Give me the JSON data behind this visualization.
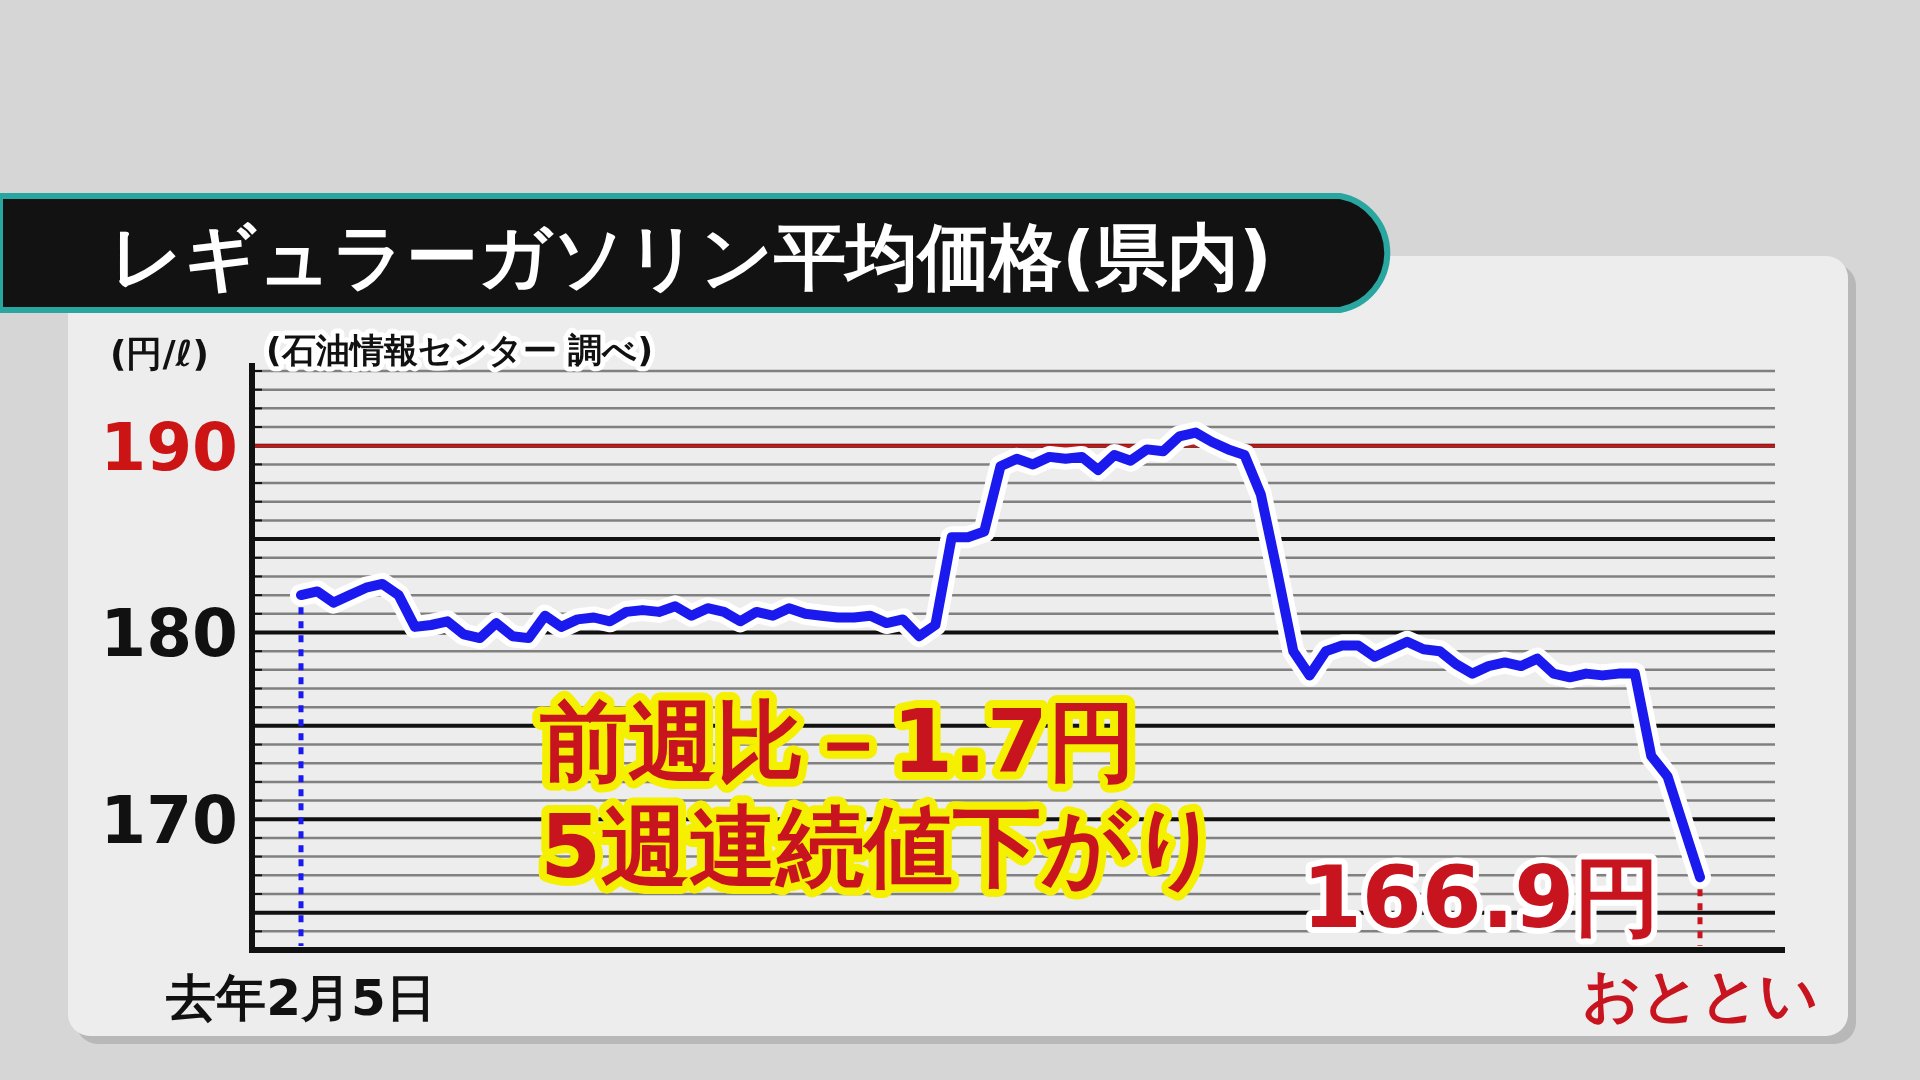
{
  "chart_data": {
    "type": "line",
    "title": "レギュラーガソリン平均価格(県内)",
    "ylabel": "(円/ℓ)",
    "categories": [
      "去年2月5日",
      null,
      null,
      null,
      null,
      null,
      null,
      null,
      null,
      null,
      null,
      null,
      null,
      null,
      null,
      null,
      null,
      null,
      null,
      null,
      null,
      null,
      null,
      null,
      null,
      null,
      null,
      null,
      null,
      null,
      null,
      null,
      null,
      null,
      null,
      null,
      null,
      null,
      null,
      null,
      null,
      null,
      null,
      null,
      null,
      null,
      null,
      null,
      null,
      null,
      null,
      null,
      null,
      null,
      null,
      null,
      null,
      null,
      null,
      null,
      null,
      null,
      null,
      null,
      null,
      null,
      null,
      null,
      null,
      null,
      null,
      null,
      null,
      null,
      null,
      null,
      null,
      null,
      null,
      null,
      null,
      null,
      null,
      null,
      null,
      null,
      "おととい"
    ],
    "series": [
      {
        "color": "#1a1aee",
        "values": [
          182.0,
          182.2,
          181.6,
          182.0,
          182.4,
          182.6,
          182.0,
          180.3,
          180.4,
          180.6,
          179.9,
          179.7,
          180.5,
          179.8,
          179.7,
          180.9,
          180.3,
          180.7,
          180.8,
          180.6,
          181.1,
          181.2,
          181.1,
          181.4,
          180.9,
          181.3,
          181.1,
          180.6,
          181.1,
          180.9,
          181.3,
          181.0,
          180.9,
          180.8,
          180.8,
          180.9,
          180.5,
          180.7,
          179.8,
          180.4,
          185.1,
          185.1,
          185.4,
          188.9,
          189.3,
          189.0,
          189.4,
          189.3,
          189.4,
          188.7,
          189.5,
          189.2,
          189.8,
          189.7,
          190.5,
          190.7,
          190.2,
          189.8,
          189.5,
          187.4,
          183.3,
          179.0,
          177.7,
          179.0,
          179.3,
          179.3,
          178.7,
          179.1,
          179.5,
          179.1,
          179.0,
          178.3,
          177.8,
          178.2,
          178.4,
          178.2,
          178.6,
          177.8,
          177.6,
          177.8,
          177.7,
          177.8,
          177.8,
          173.4,
          172.3,
          169.6,
          166.9
        ]
      }
    ],
    "ylim": [
      163,
      194
    ],
    "yticks": [
      {
        "value": 164,
        "label": null
      },
      {
        "value": 165,
        "label": null
      },
      {
        "value": 166,
        "label": null
      },
      {
        "value": 167,
        "label": null
      },
      {
        "value": 168,
        "label": null
      },
      {
        "value": 169,
        "label": null
      },
      170,
      {
        "value": 171,
        "label": null
      },
      {
        "value": 172,
        "label": null
      },
      {
        "value": 173,
        "label": null
      },
      {
        "value": 174,
        "label": null
      },
      {
        "value": 175,
        "label": null
      },
      {
        "value": 176,
        "label": null
      },
      {
        "value": 177,
        "label": null
      },
      {
        "value": 178,
        "label": null
      },
      {
        "value": 179,
        "label": null
      },
      180,
      {
        "value": 181,
        "label": null
      },
      {
        "value": 182,
        "label": null
      },
      {
        "value": 183,
        "label": null
      },
      {
        "value": 184,
        "label": null
      },
      {
        "value": 185,
        "label": null
      },
      {
        "value": 186,
        "label": null
      },
      {
        "value": 187,
        "label": null
      },
      {
        "value": 188,
        "label": null
      },
      {
        "value": 189,
        "label": null
      },
      190,
      {
        "value": 191,
        "label": null
      },
      {
        "value": 192,
        "label": null
      },
      {
        "value": 193,
        "label": null
      },
      {
        "value": 194,
        "label": null
      }
    ],
    "grid": "y",
    "marker": "none",
    "line_style": "solid",
    "ref_lines": [
      {
        "axis": "y",
        "value": 190,
        "color": "#cc1414"
      },
      {
        "axis": "x",
        "value": "去年2月5日",
        "color": "#1a1aee",
        "line_style": "dotted"
      },
      {
        "axis": "x",
        "value": "おととい",
        "color": "#c8141e",
        "line_style": "dotted"
      }
    ],
    "annotations": [
      "(石油情報センター 調べ)",
      "前週比－1.7円",
      "5週連続値下がり",
      {
        "text": "166.9円",
        "x": "おととい",
        "y": 166.9
      }
    ]
  }
}
